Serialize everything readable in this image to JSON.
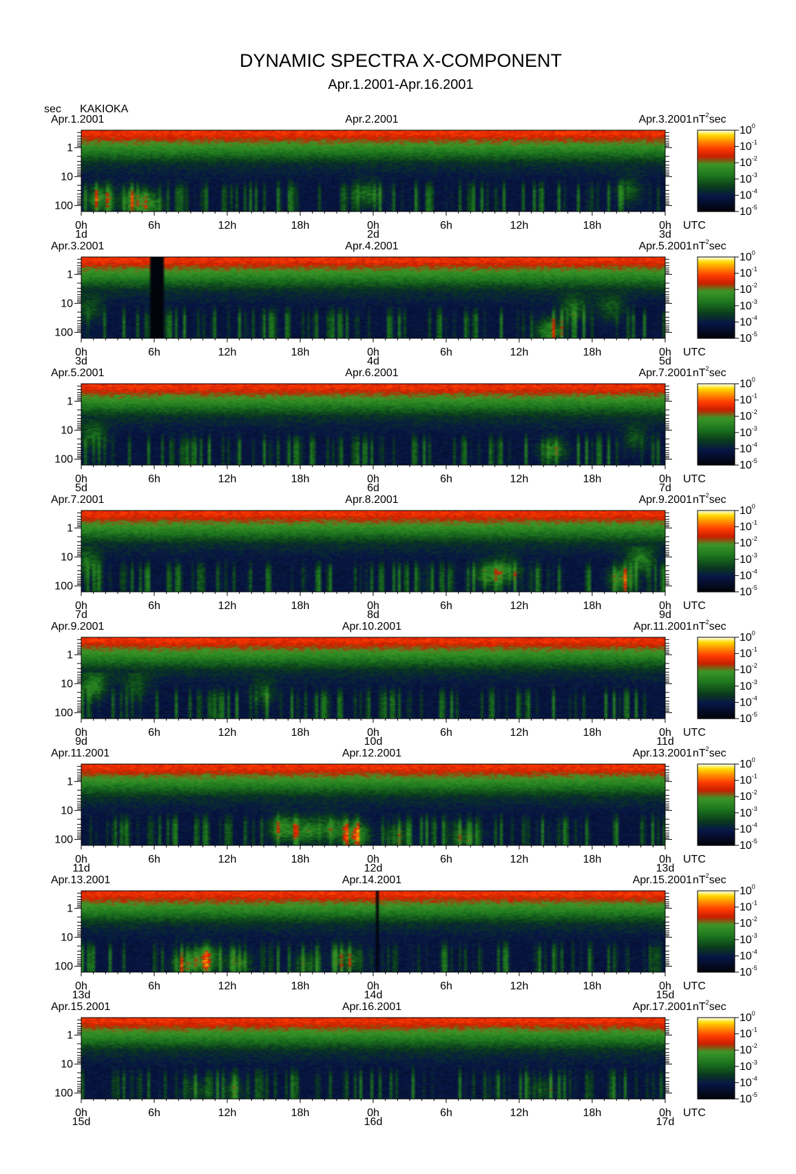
{
  "chart_data": {
    "type": "heatmap",
    "title": "DYNAMIC SPECTRA X-COMPONENT",
    "subtitle": "Apr.1.2001-Apr.16.2001",
    "station": "KAKIOKA",
    "y_unit": "sec",
    "colorbar_unit_base": "nT",
    "colorbar_unit_exp": "2",
    "colorbar_unit_tail": "sec",
    "x_time_label": "UTC",
    "y_ticks": [
      "1",
      "10",
      "100"
    ],
    "x_ticks": [
      "0h",
      "6h",
      "12h",
      "18h",
      "0h",
      "6h",
      "12h",
      "18h",
      "0h"
    ],
    "colorbar_exponents": [
      "0",
      "-1",
      "-2",
      "-3",
      "-4",
      "-5"
    ],
    "panels": [
      {
        "date_left": "Apr.1.2001",
        "date_mid": "Apr.2.2001",
        "date_right": "Apr.3.2001",
        "day_start": "1d",
        "day_mid": "2d",
        "day_end": "3d",
        "gaps_hours": [],
        "events": [
          {
            "t": 1.5,
            "p": 60,
            "i": 0.8
          },
          {
            "t": 4.2,
            "p": 70,
            "i": 0.6
          },
          {
            "t": 5.6,
            "p": 90,
            "i": 0.7
          },
          {
            "t": 23.5,
            "p": 40,
            "i": 0.6
          },
          {
            "t": 45,
            "p": 30,
            "i": 0.45
          }
        ]
      },
      {
        "date_left": "Apr.3.2001",
        "date_mid": "Apr.4.2001",
        "date_right": "Apr.5.2001",
        "day_start": "3d",
        "day_mid": "4d",
        "day_end": "5d",
        "gaps_hours": [
          [
            5.7,
            6.8
          ]
        ],
        "events": [
          {
            "t": 38.5,
            "p": 90,
            "i": 0.75
          },
          {
            "t": 40.5,
            "p": 15,
            "i": 0.5
          },
          {
            "t": 43.5,
            "p": 15,
            "i": 0.45
          },
          {
            "t": 0.7,
            "p": 15,
            "i": 0.4
          }
        ]
      },
      {
        "date_left": "Apr.5.2001",
        "date_mid": "Apr.6.2001",
        "date_right": "Apr.7.2001",
        "day_start": "5d",
        "day_mid": "6d",
        "day_end": "7d",
        "gaps_hours": [],
        "events": [
          {
            "t": 1.0,
            "p": 15,
            "i": 0.5
          },
          {
            "t": 38.8,
            "p": 50,
            "i": 0.65
          },
          {
            "t": 45.5,
            "p": 20,
            "i": 0.4
          }
        ]
      },
      {
        "date_left": "Apr.7.2001",
        "date_mid": "Apr.8.2001",
        "date_right": "Apr.9.2001",
        "day_start": "7d",
        "day_mid": "8d",
        "day_end": "9d",
        "gaps_hours": [],
        "events": [
          {
            "t": 0.5,
            "p": 15,
            "i": 0.5
          },
          {
            "t": 33.5,
            "p": 40,
            "i": 0.7
          },
          {
            "t": 35,
            "p": 30,
            "i": 0.55
          },
          {
            "t": 44.5,
            "p": 60,
            "i": 0.8
          },
          {
            "t": 46,
            "p": 12,
            "i": 0.6
          }
        ]
      },
      {
        "date_left": "Apr.9.2001",
        "date_mid": "Apr.10.2001",
        "date_right": "Apr.11.2001",
        "day_start": "9d",
        "day_mid": "10d",
        "day_end": "11d",
        "gaps_hours": [],
        "events": [
          {
            "t": 1.0,
            "p": 12,
            "i": 0.7
          },
          {
            "t": 4.5,
            "p": 12,
            "i": 0.4
          },
          {
            "t": 15,
            "p": 20,
            "i": 0.4
          }
        ]
      },
      {
        "date_left": "Apr.11.2001",
        "date_mid": "Apr.12.2001",
        "date_right": "Apr.13.2001",
        "day_start": "11d",
        "day_mid": "12d",
        "day_end": "13d",
        "gaps_hours": [],
        "events": [
          {
            "t": 16.5,
            "p": 40,
            "i": 0.8
          },
          {
            "t": 18.5,
            "p": 50,
            "i": 0.75
          },
          {
            "t": 22.5,
            "p": 70,
            "i": 1.0
          },
          {
            "t": 20.5,
            "p": 40,
            "i": 0.6
          },
          {
            "t": 26,
            "p": 80,
            "i": 0.5
          },
          {
            "t": 31.5,
            "p": 90,
            "i": 0.45
          }
        ]
      },
      {
        "date_left": "Apr.13.2001",
        "date_mid": "Apr.14.2001",
        "date_right": "Apr.15.2001",
        "day_start": "13d",
        "day_mid": "14d",
        "day_end": "15d",
        "gaps_hours": [
          [
            24.25,
            24.45
          ]
        ],
        "events": [
          {
            "t": 10.2,
            "p": 60,
            "i": 1.0
          },
          {
            "t": 8.5,
            "p": 90,
            "i": 0.6
          },
          {
            "t": 13,
            "p": 80,
            "i": 0.55
          },
          {
            "t": 22,
            "p": 60,
            "i": 0.6
          },
          {
            "t": 18.5,
            "p": 90,
            "i": 0.45
          }
        ]
      },
      {
        "date_left": "Apr.15.2001",
        "date_mid": "Apr.16.2001",
        "date_right": "Apr.17.2001",
        "day_start": "15d",
        "day_mid": "16d",
        "day_end": "17d",
        "gaps_hours": [],
        "events": [
          {
            "t": 9.5,
            "p": 80,
            "i": 0.35
          },
          {
            "t": 12.5,
            "p": 80,
            "i": 0.35
          },
          {
            "t": 38,
            "p": 80,
            "i": 0.35
          }
        ]
      }
    ],
    "colorscale": [
      "#000000",
      "#0a1a3c",
      "#0d3a1e",
      "#1f7a1f",
      "#3c9a28",
      "#cc1a00",
      "#ff3a00",
      "#ff8c00",
      "#ffd000",
      "#fffccc"
    ],
    "x_range_hours": [
      0,
      48
    ],
    "y_range_sec": [
      0.25,
      160
    ],
    "y_scale": "log",
    "legend": "right"
  }
}
